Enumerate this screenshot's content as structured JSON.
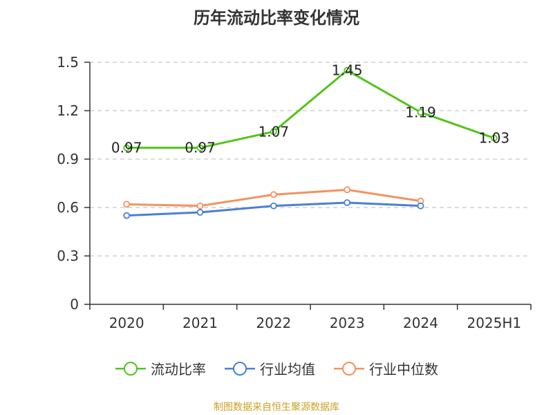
{
  "chart_data": {
    "type": "line",
    "title": "历年流动比率变化情况",
    "categories": [
      "2020",
      "2021",
      "2022",
      "2023",
      "2024",
      "2025H1"
    ],
    "ylim": [
      0,
      1.5
    ],
    "yticks": [
      0,
      0.3,
      0.6,
      0.9,
      1.2,
      1.5
    ],
    "ytick_labels": [
      "0",
      "0.3",
      "0.6",
      "0.9",
      "1.2",
      "1.5"
    ],
    "grid": true,
    "legend_position": "bottom",
    "series": [
      {
        "name": "流动比率",
        "color": "#52c41a",
        "values": [
          0.97,
          0.97,
          1.07,
          1.45,
          1.19,
          1.03
        ],
        "show_labels": true
      },
      {
        "name": "行业均值",
        "color": "#4a7fd4",
        "values": [
          0.55,
          0.57,
          0.61,
          0.63,
          0.61,
          null
        ],
        "show_labels": false
      },
      {
        "name": "行业中位数",
        "color": "#f4915e",
        "values": [
          0.62,
          0.61,
          0.68,
          0.71,
          0.64,
          null
        ],
        "show_labels": false
      }
    ]
  },
  "source_note": "制图数据来自恒生聚源数据库"
}
